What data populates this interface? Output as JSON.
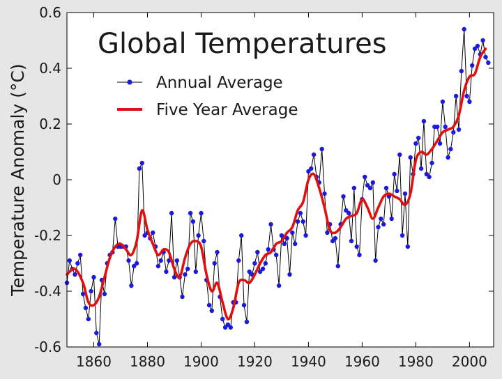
{
  "chart_data": {
    "type": "line",
    "title": "Global Temperatures",
    "xlabel": "",
    "ylabel": "Temperature Anomaly (°C)",
    "xlim": [
      1850,
      2009
    ],
    "ylim": [
      -0.6,
      0.6
    ],
    "x_ticks": [
      1860,
      1880,
      1900,
      1920,
      1940,
      1960,
      1980,
      2000
    ],
    "y_ticks": [
      -0.6,
      -0.4,
      -0.2,
      0,
      0.2,
      0.4,
      0.6
    ],
    "y_tick_labels": [
      "-0.6",
      "-0.4",
      "-0.2",
      "0",
      "0.2",
      "0.4",
      "0.6"
    ],
    "grid": false,
    "legend_position": "top-left",
    "colors": {
      "annual_line": "#000000",
      "annual_marker": "#1a1adc",
      "five_year": "#e01010",
      "background": "#ffffff",
      "frame": "#e6e6e6"
    },
    "series": [
      {
        "name": "Annual Average",
        "style": "line-with-markers",
        "x": [
          1850,
          1851,
          1852,
          1853,
          1854,
          1855,
          1856,
          1857,
          1858,
          1859,
          1860,
          1861,
          1862,
          1863,
          1864,
          1865,
          1866,
          1867,
          1868,
          1869,
          1870,
          1871,
          1872,
          1873,
          1874,
          1875,
          1876,
          1877,
          1878,
          1879,
          1880,
          1881,
          1882,
          1883,
          1884,
          1885,
          1886,
          1887,
          1888,
          1889,
          1890,
          1891,
          1892,
          1893,
          1894,
          1895,
          1896,
          1897,
          1898,
          1899,
          1900,
          1901,
          1902,
          1903,
          1904,
          1905,
          1906,
          1907,
          1908,
          1909,
          1910,
          1911,
          1912,
          1913,
          1914,
          1915,
          1916,
          1917,
          1918,
          1919,
          1920,
          1921,
          1922,
          1923,
          1924,
          1925,
          1926,
          1927,
          1928,
          1929,
          1930,
          1931,
          1932,
          1933,
          1934,
          1935,
          1936,
          1937,
          1938,
          1939,
          1940,
          1941,
          1942,
          1943,
          1944,
          1945,
          1946,
          1947,
          1948,
          1949,
          1950,
          1951,
          1952,
          1953,
          1954,
          1955,
          1956,
          1957,
          1958,
          1959,
          1960,
          1961,
          1962,
          1963,
          1964,
          1965,
          1966,
          1967,
          1968,
          1969,
          1970,
          1971,
          1972,
          1973,
          1974,
          1975,
          1976,
          1977,
          1978,
          1979,
          1980,
          1981,
          1982,
          1983,
          1984,
          1985,
          1986,
          1987,
          1988,
          1989,
          1990,
          1991,
          1992,
          1993,
          1994,
          1995,
          1996,
          1997,
          1998,
          1999,
          2000,
          2001,
          2002,
          2003,
          2004,
          2005,
          2006,
          2007
        ],
        "values": [
          -0.37,
          -0.29,
          -0.32,
          -0.34,
          -0.3,
          -0.27,
          -0.41,
          -0.46,
          -0.5,
          -0.4,
          -0.35,
          -0.55,
          -0.59,
          -0.36,
          -0.41,
          -0.3,
          -0.27,
          -0.26,
          -0.14,
          -0.24,
          -0.24,
          -0.24,
          -0.24,
          -0.29,
          -0.38,
          -0.31,
          -0.3,
          0.04,
          0.06,
          -0.2,
          -0.19,
          -0.21,
          -0.19,
          -0.24,
          -0.31,
          -0.29,
          -0.26,
          -0.33,
          -0.29,
          -0.12,
          -0.35,
          -0.29,
          -0.35,
          -0.42,
          -0.34,
          -0.32,
          -0.12,
          -0.15,
          -0.33,
          -0.2,
          -0.12,
          -0.22,
          -0.36,
          -0.45,
          -0.47,
          -0.3,
          -0.26,
          -0.42,
          -0.5,
          -0.53,
          -0.52,
          -0.53,
          -0.44,
          -0.44,
          -0.29,
          -0.2,
          -0.45,
          -0.51,
          -0.33,
          -0.34,
          -0.3,
          -0.26,
          -0.33,
          -0.32,
          -0.3,
          -0.25,
          -0.16,
          -0.25,
          -0.27,
          -0.38,
          -0.2,
          -0.23,
          -0.21,
          -0.34,
          -0.19,
          -0.23,
          -0.15,
          -0.12,
          -0.15,
          -0.2,
          0.03,
          0.04,
          0.09,
          0.01,
          -0.01,
          0.11,
          -0.05,
          -0.19,
          -0.16,
          -0.22,
          -0.21,
          -0.31,
          -0.16,
          -0.06,
          -0.11,
          -0.12,
          -0.22,
          -0.03,
          -0.24,
          -0.27,
          -0.07,
          0.01,
          -0.02,
          -0.03,
          -0.01,
          -0.29,
          -0.17,
          -0.14,
          -0.16,
          -0.03,
          -0.06,
          -0.14,
          0.02,
          -0.04,
          0.09,
          -0.2,
          -0.05,
          -0.24,
          0.08,
          0.02,
          0.13,
          0.15,
          0.04,
          0.21,
          0.02,
          0.01,
          0.06,
          0.19,
          0.19,
          0.13,
          0.28,
          0.19,
          0.08,
          0.11,
          0.17,
          0.3,
          0.18,
          0.39,
          0.54,
          0.3,
          0.28,
          0.41,
          0.47,
          0.48,
          0.45,
          0.5,
          0.44,
          0.42
        ]
      },
      {
        "name": "Five Year Average",
        "style": "smooth-line",
        "x": [
          1850,
          1853,
          1856,
          1858,
          1860,
          1862,
          1864,
          1866,
          1868,
          1870,
          1872,
          1874,
          1876,
          1878,
          1880,
          1882,
          1884,
          1886,
          1888,
          1890,
          1892,
          1894,
          1896,
          1898,
          1900,
          1902,
          1904,
          1906,
          1908,
          1910,
          1912,
          1914,
          1916,
          1918,
          1920,
          1922,
          1924,
          1926,
          1928,
          1930,
          1932,
          1934,
          1936,
          1938,
          1940,
          1942,
          1944,
          1946,
          1948,
          1950,
          1952,
          1954,
          1956,
          1958,
          1960,
          1962,
          1964,
          1966,
          1968,
          1970,
          1972,
          1974,
          1976,
          1978,
          1980,
          1982,
          1984,
          1986,
          1988,
          1990,
          1992,
          1994,
          1996,
          1998,
          2000,
          2002,
          2004,
          2006
        ],
        "values": [
          -0.34,
          -0.32,
          -0.37,
          -0.44,
          -0.45,
          -0.42,
          -0.35,
          -0.28,
          -0.24,
          -0.23,
          -0.25,
          -0.27,
          -0.22,
          -0.11,
          -0.18,
          -0.23,
          -0.27,
          -0.25,
          -0.26,
          -0.32,
          -0.35,
          -0.28,
          -0.23,
          -0.22,
          -0.24,
          -0.34,
          -0.4,
          -0.37,
          -0.44,
          -0.5,
          -0.46,
          -0.37,
          -0.36,
          -0.37,
          -0.34,
          -0.3,
          -0.27,
          -0.26,
          -0.23,
          -0.22,
          -0.19,
          -0.17,
          -0.11,
          -0.08,
          0.0,
          0.02,
          -0.03,
          -0.1,
          -0.18,
          -0.19,
          -0.17,
          -0.14,
          -0.13,
          -0.12,
          -0.07,
          -0.1,
          -0.14,
          -0.1,
          -0.06,
          -0.05,
          -0.06,
          -0.07,
          -0.09,
          -0.05,
          0.07,
          0.1,
          0.09,
          0.11,
          0.14,
          0.17,
          0.18,
          0.19,
          0.23,
          0.32,
          0.37,
          0.38,
          0.44,
          0.47
        ]
      }
    ]
  }
}
